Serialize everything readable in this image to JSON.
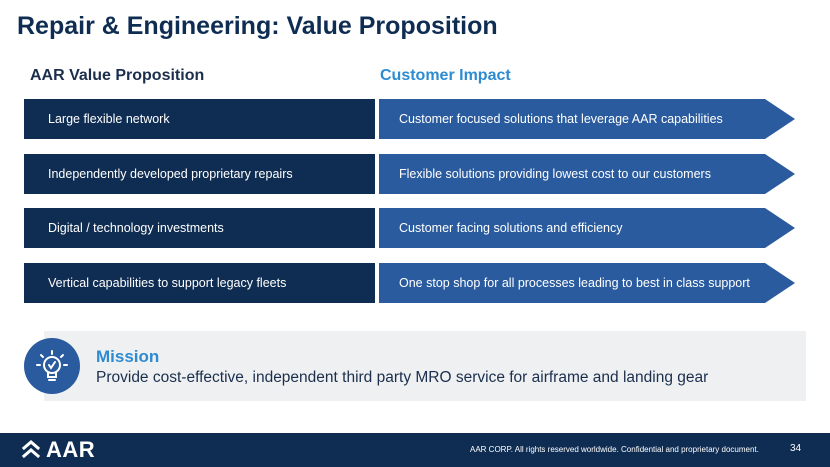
{
  "slide": {
    "title": "Repair & Engineering: Value Proposition",
    "left_heading": "AAR Value Proposition",
    "right_heading": "Customer Impact",
    "rows": [
      {
        "left": "Large flexible network",
        "right": "Customer focused solutions that leverage AAR capabilities"
      },
      {
        "left": "Independently developed proprietary repairs",
        "right": "Flexible solutions providing lowest cost to our customers"
      },
      {
        "left": "Digital / technology investments",
        "right": "Customer facing solutions and efficiency"
      },
      {
        "left": "Vertical capabilities to support legacy fleets",
        "right": "One stop shop for all processes leading to best in class support"
      }
    ],
    "mission": {
      "title": "Mission",
      "text": "Provide cost-effective, independent third party MRO service for airframe and landing gear",
      "icon": "lightbulb-icon"
    }
  },
  "footer": {
    "logo_text": "AAR",
    "note": "AAR CORP. All rights reserved worldwide. Confidential and proprietary document.",
    "page_number": "34"
  },
  "colors": {
    "navy": "#0f2d52",
    "arrow_blue": "#2a5b9e",
    "accent_blue": "#2e8bd0",
    "mission_panel": "#eff0f1"
  }
}
